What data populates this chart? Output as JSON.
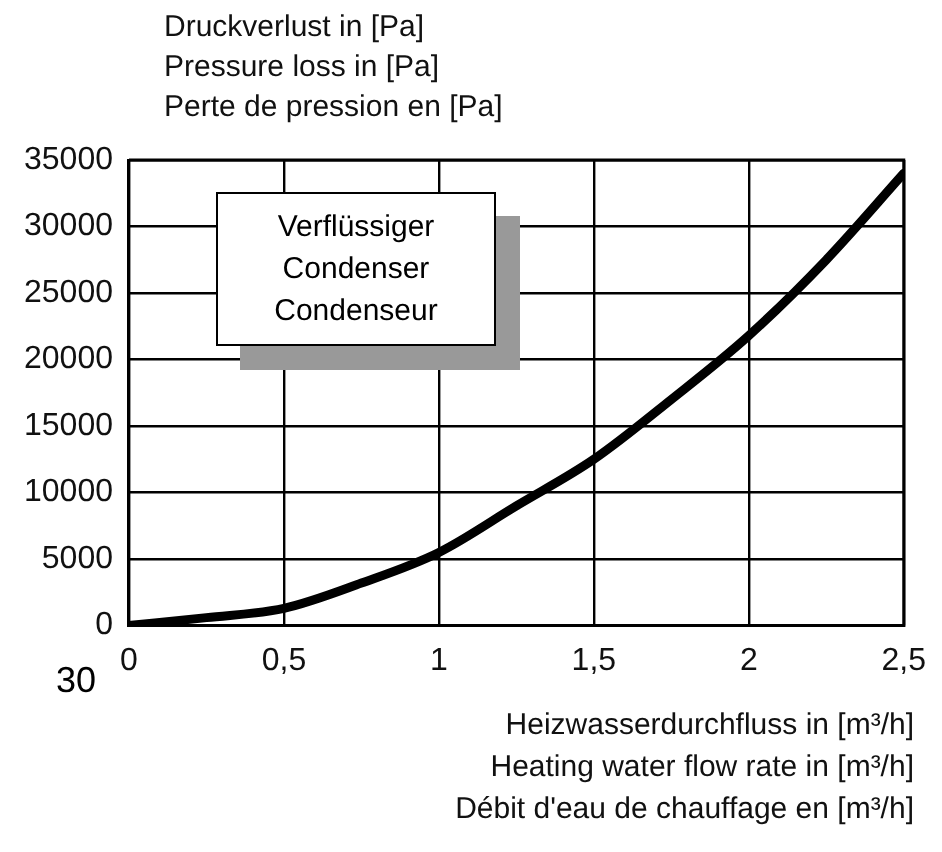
{
  "chart_data": {
    "type": "line",
    "ylabel": "Druckverlust in [Pa]\nPressure loss in [Pa]\nPerte de pression en [Pa]",
    "xlabel": "Heizwasserdurchfluss in [m³/h]\nHeating water flow rate in [m³/h]\nDébit d'eau de chauffage en [m³/h]",
    "annotations": [
      "Verflüssiger\nCondenser\nCondenseur",
      "30"
    ],
    "x": [
      0,
      0.25,
      0.5,
      0.75,
      1,
      1.25,
      1.5,
      1.75,
      2,
      2.25,
      2.5
    ],
    "series": [
      {
        "color": "#000000",
        "values": [
          0,
          600,
          1300,
          3200,
          5500,
          9000,
          12500,
          17000,
          21800,
          27500,
          34000
        ]
      }
    ],
    "xlim": [
      0,
      2.5
    ],
    "ylim": [
      0,
      35000
    ],
    "xticks": [
      0,
      {
        "value": 0.5,
        "label": "0,5"
      },
      1,
      {
        "value": 1.5,
        "label": "1,5"
      },
      2,
      {
        "value": 2.5,
        "label": "2,5"
      }
    ],
    "yticks": [
      0,
      5000,
      10000,
      15000,
      20000,
      25000,
      30000,
      35000
    ],
    "grid": true,
    "marker": "none",
    "line_style": "solid"
  }
}
